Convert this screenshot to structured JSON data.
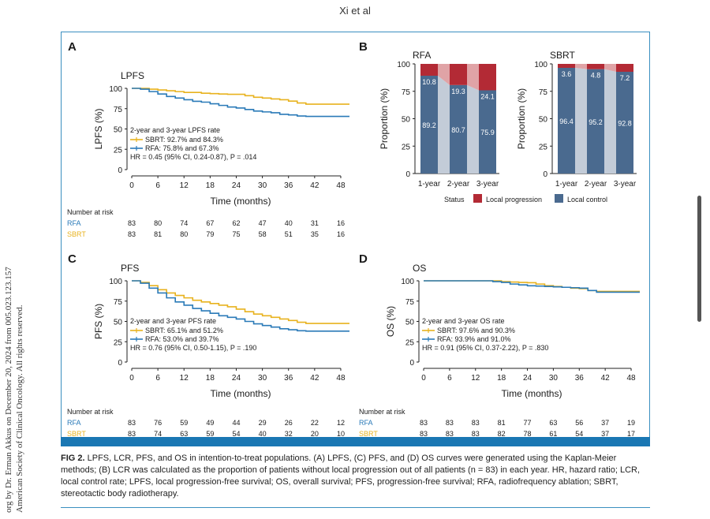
{
  "header": "Xi et al",
  "sidebar_text": [
    "org by Dr. Erman Akkus on December 20, 2024 from 005.023.123.157",
    "American Society of Clinical Oncology. All rights reserved."
  ],
  "caption": {
    "label": "FIG 2.",
    "text": "LPFS, LCR, PFS, and OS in intention-to-treat populations. (A) LPFS, (C) PFS, and (D) OS curves were generated using the Kaplan-Meier methods; (B) LCR was calculated as the proportion of patients without local progression out of all patients (n = 83) in each year. HR, hazard ratio; LCR, local control rate; LPFS, local progression-free survival; OS, overall survival; PFS, progression-free survival; RFA, radiofrequency ablation; SBRT, stereotactic body radiotherapy."
  },
  "colors": {
    "sbrt": "#e8b21e",
    "rfa": "#2a7ab8",
    "local_control": "#4a6a8f",
    "local_progression": "#b32a35",
    "lc_faded": "#c3ccd8",
    "lp_faded": "#e0a3a6",
    "frame": "#3a8fc0"
  },
  "chart_data": [
    {
      "panel": "A",
      "type": "line",
      "title": "LPFS",
      "xlabel": "Time (months)",
      "ylabel": "LPFS (%)",
      "xticks": [
        0,
        6,
        12,
        18,
        24,
        30,
        36,
        42,
        48
      ],
      "yticks": [
        0,
        25,
        50,
        75,
        100
      ],
      "xlim": [
        0,
        50
      ],
      "ylim": [
        0,
        100
      ],
      "legend_title": "2-year and 3-year LPFS rate",
      "series": [
        {
          "name": "SBRT",
          "legend": "SBRT: 92.7% and 84.3%",
          "color": "sbrt",
          "x": [
            0,
            2,
            4,
            6,
            8,
            10,
            12,
            14,
            16,
            18,
            20,
            22,
            24,
            26,
            28,
            30,
            32,
            34,
            36,
            38,
            40,
            44,
            48,
            50
          ],
          "y": [
            100,
            100,
            99,
            98,
            97,
            96,
            95,
            95,
            94,
            93.5,
            93,
            92.7,
            92.7,
            91,
            89,
            88,
            87,
            86,
            84.3,
            82,
            80.5,
            80.5,
            80.5,
            80.5
          ]
        },
        {
          "name": "RFA",
          "legend": "RFA: 75.8% and 67.3%",
          "color": "rfa",
          "x": [
            0,
            2,
            4,
            6,
            8,
            10,
            12,
            14,
            16,
            18,
            20,
            22,
            24,
            26,
            28,
            30,
            32,
            34,
            36,
            38,
            40,
            44,
            48,
            50
          ],
          "y": [
            100,
            99,
            96,
            93,
            90,
            88,
            86,
            84,
            83,
            81,
            79,
            77,
            75.8,
            74,
            72,
            71,
            70,
            68,
            67.3,
            66,
            65.5,
            65.5,
            65.5,
            65.5
          ]
        }
      ],
      "hr_text": "HR = 0.45 (95% CI, 0.24-0.87), P = .014",
      "risk_title": "Number at risk",
      "risk": [
        {
          "name": "RFA",
          "color": "rfa",
          "values": [
            83,
            80,
            74,
            67,
            62,
            47,
            40,
            31,
            16
          ]
        },
        {
          "name": "SBRT",
          "color": "sbrt",
          "values": [
            83,
            81,
            80,
            79,
            75,
            58,
            51,
            35,
            16
          ]
        }
      ]
    },
    {
      "panel": "B",
      "type": "bar",
      "ylabel": "Proportion (%)",
      "yticks": [
        0,
        25,
        50,
        75,
        100
      ],
      "ylim": [
        0,
        100
      ],
      "groups": [
        {
          "title": "RFA",
          "categories": [
            "1-year",
            "2-year",
            "3-year"
          ],
          "local_control": [
            89.2,
            80.7,
            75.9
          ],
          "local_progression": [
            10.8,
            19.3,
            24.1
          ],
          "lc_labels": [
            "89.2",
            "80.7",
            "75.9"
          ],
          "lp_labels": [
            "10.8",
            "19.3",
            "24.1"
          ]
        },
        {
          "title": "SBRT",
          "categories": [
            "1-year",
            "2-year",
            "3-year"
          ],
          "local_control": [
            96.4,
            95.2,
            92.8
          ],
          "local_progression": [
            3.6,
            4.8,
            7.2
          ],
          "lc_labels": [
            "96.4",
            "95.2",
            "92.8"
          ],
          "lp_labels": [
            "3.6",
            "4.8",
            "7.2"
          ]
        }
      ],
      "legend_title": "Status",
      "legend": [
        "Local progression",
        "Local control"
      ]
    },
    {
      "panel": "C",
      "type": "line",
      "title": "PFS",
      "xlabel": "Time (months)",
      "ylabel": "PFS (%)",
      "xticks": [
        0,
        6,
        12,
        18,
        24,
        30,
        36,
        42,
        48
      ],
      "yticks": [
        0,
        25,
        50,
        75,
        100
      ],
      "xlim": [
        0,
        50
      ],
      "ylim": [
        0,
        100
      ],
      "legend_title": "2-year and 3-year PFS rate",
      "series": [
        {
          "name": "SBRT",
          "legend": "SBRT: 65.1% and 51.2%",
          "color": "sbrt",
          "x": [
            0,
            2,
            4,
            6,
            8,
            10,
            12,
            14,
            16,
            18,
            20,
            22,
            24,
            26,
            28,
            30,
            32,
            34,
            36,
            38,
            40,
            44,
            48,
            50
          ],
          "y": [
            100,
            98,
            94,
            89,
            85,
            82,
            79,
            76,
            74,
            72,
            70,
            68,
            65.1,
            62,
            59,
            57,
            55,
            53,
            51.2,
            49,
            47.5,
            47.5,
            47.5,
            47.5
          ]
        },
        {
          "name": "RFA",
          "legend": "RFA: 53.0% and 39.7%",
          "color": "rfa",
          "x": [
            0,
            2,
            4,
            6,
            8,
            10,
            12,
            14,
            16,
            18,
            20,
            22,
            24,
            26,
            28,
            30,
            32,
            34,
            36,
            38,
            40,
            44,
            48,
            50
          ],
          "y": [
            100,
            97,
            91,
            85,
            79,
            74,
            70,
            66,
            63,
            60,
            57,
            55,
            53,
            50,
            47,
            45,
            43,
            41,
            39.7,
            38.5,
            38,
            38,
            38,
            38
          ]
        }
      ],
      "hr_text": "HR = 0.76 (95% CI, 0.50-1.15), P = .190",
      "risk_title": "Number at risk",
      "risk": [
        {
          "name": "RFA",
          "color": "rfa",
          "values": [
            83,
            76,
            59,
            49,
            44,
            29,
            26,
            22,
            12
          ]
        },
        {
          "name": "SBRT",
          "color": "sbrt",
          "values": [
            83,
            74,
            63,
            59,
            54,
            40,
            32,
            20,
            10
          ]
        }
      ]
    },
    {
      "panel": "D",
      "type": "line",
      "title": "OS",
      "xlabel": "Time (months)",
      "ylabel": "OS (%)",
      "xticks": [
        0,
        6,
        12,
        18,
        24,
        30,
        36,
        42,
        48
      ],
      "yticks": [
        0,
        25,
        50,
        75,
        100
      ],
      "xlim": [
        0,
        50
      ],
      "ylim": [
        0,
        100
      ],
      "legend_title": "2-year and 3-year OS rate",
      "series": [
        {
          "name": "SBRT",
          "legend": "SBRT: 97.6% and 90.3%",
          "color": "sbrt",
          "x": [
            0,
            6,
            12,
            16,
            18,
            20,
            22,
            24,
            26,
            28,
            30,
            32,
            34,
            36,
            38,
            40,
            44,
            48,
            50
          ],
          "y": [
            100,
            100,
            100,
            100,
            99,
            98.5,
            98,
            97.6,
            96,
            94,
            93,
            92,
            91,
            90.3,
            88,
            87,
            87,
            87,
            87
          ]
        },
        {
          "name": "RFA",
          "legend": "RFA: 93.9% and 91.0%",
          "color": "rfa",
          "x": [
            0,
            6,
            12,
            16,
            18,
            20,
            22,
            24,
            26,
            28,
            30,
            32,
            34,
            36,
            38,
            40,
            44,
            48,
            50
          ],
          "y": [
            100,
            100,
            100,
            99,
            98,
            96,
            95,
            93.9,
            93.5,
            93,
            92.5,
            92,
            91.5,
            91,
            88,
            86,
            86,
            86,
            86
          ]
        }
      ],
      "hr_text": "HR = 0.91 (95% CI, 0.37-2.22), P = .830",
      "risk_title": "Number at risk",
      "risk": [
        {
          "name": "RFA",
          "color": "rfa",
          "values": [
            83,
            83,
            83,
            81,
            77,
            63,
            56,
            37,
            19
          ]
        },
        {
          "name": "SBRT",
          "color": "sbrt",
          "values": [
            83,
            83,
            83,
            82,
            78,
            61,
            54,
            37,
            17
          ]
        }
      ]
    }
  ]
}
